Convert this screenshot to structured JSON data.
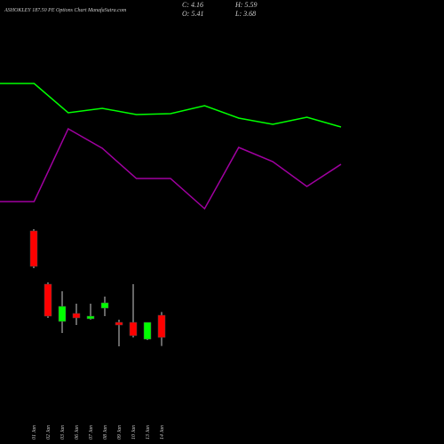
{
  "chart_data": [
    {
      "type": "candlestick",
      "title": "ASHOKLEY 187.50 PE Options Chart ManafaSutra.com",
      "info_labels": [
        "C: 4.16",
        "H: 5.59",
        "O: 5.41",
        "L: 3.68"
      ],
      "categories": [
        "01 Jan",
        "02 Jan",
        "03 Jan",
        "06 Jan",
        "07 Jan",
        "08 Jan",
        "09 Jan",
        "10 Jan",
        "13 Jan",
        "14 Jan"
      ],
      "open": [
        10.16,
        7.16,
        5.06,
        5.51,
        5.21,
        5.81,
        5.01,
        5.01,
        4.06,
        5.41
      ],
      "high": [
        10.26,
        7.26,
        6.76,
        6.06,
        6.06,
        6.46,
        5.16,
        7.16,
        5.01,
        5.59
      ],
      "low": [
        8.06,
        5.26,
        4.41,
        4.86,
        5.16,
        5.36,
        3.66,
        4.16,
        4.01,
        3.68
      ],
      "close": [
        8.16,
        5.36,
        5.91,
        5.26,
        5.36,
        6.11,
        4.86,
        4.26,
        5.01,
        4.16
      ],
      "up_color": "#00ff00",
      "down_color": "#ff0000",
      "ylim": [
        -1.84,
        23.16
      ]
    },
    {
      "type": "line",
      "series": [
        {
          "color": "#00ff00",
          "values": [
            406,
            406,
            373,
            378,
            371,
            372,
            381,
            367,
            360,
            368,
            357
          ]
        },
        {
          "color": "#a000a0",
          "values": [
            273,
            273,
            355,
            333,
            299,
            299,
            265,
            334,
            318,
            290,
            315
          ]
        }
      ],
      "ylim": [
        0,
        500
      ]
    }
  ]
}
